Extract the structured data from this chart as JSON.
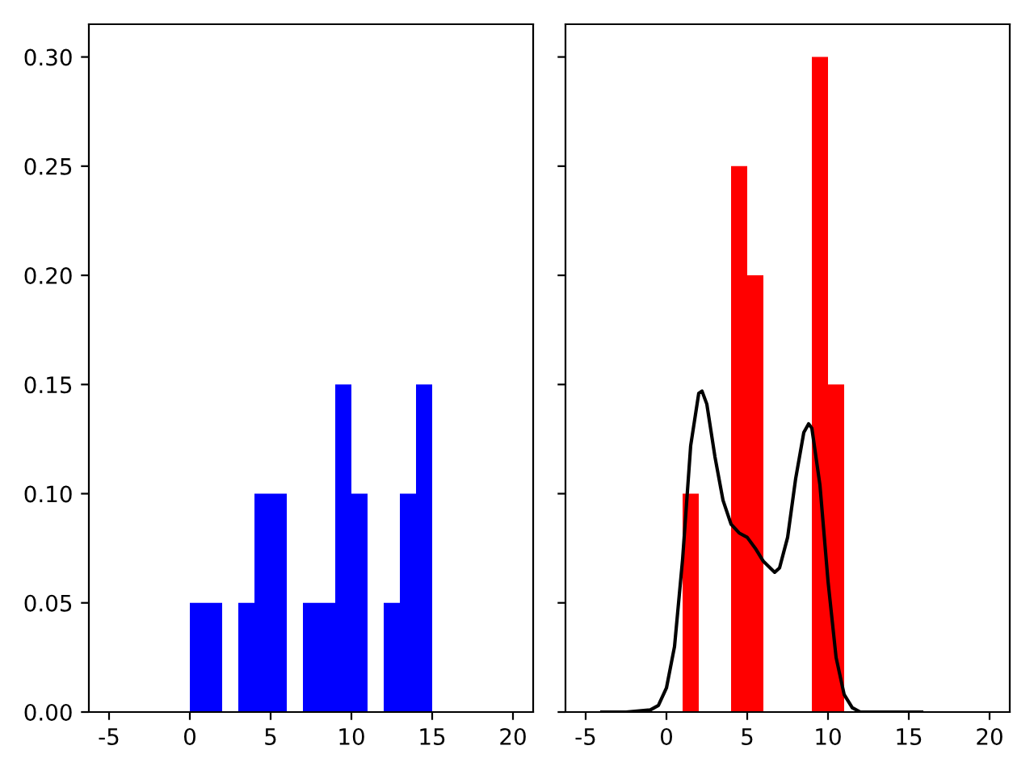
{
  "chart_data": [
    {
      "type": "histogram",
      "bins": [
        0,
        1,
        2,
        3,
        4,
        5,
        6,
        7,
        8,
        9,
        10,
        11,
        12,
        13,
        14,
        15
      ],
      "values": [
        0.05,
        0.05,
        0,
        0.05,
        0.1,
        0.1,
        0,
        0.05,
        0.05,
        0.15,
        0.1,
        0,
        0.05,
        0.1,
        0.15
      ],
      "color": "#0000ff",
      "xlim": [
        -6.25,
        21.25
      ],
      "xticks": [
        -5,
        0,
        5,
        10,
        15,
        20
      ],
      "ylim": [
        0,
        0.315
      ],
      "yticks": [
        {
          "value": 0,
          "label": "0.00"
        },
        {
          "value": 0.05,
          "label": "0.05"
        },
        {
          "value": 0.1,
          "label": "0.10"
        },
        {
          "value": 0.15,
          "label": "0.15"
        },
        {
          "value": 0.2,
          "label": "0.20"
        },
        {
          "value": 0.25,
          "label": "0.25"
        },
        {
          "value": 0.3,
          "label": "0.30"
        }
      ],
      "grid": false
    },
    {
      "type": "histogram",
      "series": [
        {
          "type": "histogram",
          "color": "#ff0000",
          "bins": [
            1,
            2,
            3,
            4,
            5,
            6,
            7,
            8,
            9,
            10,
            11
          ],
          "values": [
            0.1,
            0,
            0,
            0.25,
            0.2,
            0,
            0,
            0,
            0.3,
            0.15
          ]
        },
        {
          "type": "line",
          "color": "#000000",
          "x": [
            -4,
            -2.5,
            -1,
            -0.5,
            0,
            0.5,
            1,
            1.5,
            2,
            2.2,
            2.5,
            3,
            3.5,
            4,
            4.5,
            5,
            5.5,
            6,
            6.7,
            7,
            7.5,
            8,
            8.5,
            8.8,
            9,
            9.5,
            10,
            10.5,
            11,
            11.5,
            12,
            15.8
          ],
          "values": [
            0,
            0,
            0.001,
            0.003,
            0.011,
            0.03,
            0.07,
            0.122,
            0.146,
            0.147,
            0.141,
            0.117,
            0.097,
            0.086,
            0.082,
            0.08,
            0.075,
            0.069,
            0.064,
            0.066,
            0.08,
            0.107,
            0.128,
            0.132,
            0.13,
            0.104,
            0.06,
            0.025,
            0.008,
            0.002,
            0,
            0
          ]
        }
      ],
      "xlim": [
        -6.25,
        21.25
      ],
      "xticks": [
        -5,
        0,
        5,
        10,
        15,
        20
      ],
      "ylim": [
        0,
        0.315
      ],
      "yticks": [
        {
          "value": 0,
          "label": null
        },
        {
          "value": 0.05,
          "label": null
        },
        {
          "value": 0.1,
          "label": null
        },
        {
          "value": 0.15,
          "label": null
        },
        {
          "value": 0.2,
          "label": null
        },
        {
          "value": 0.25,
          "label": null
        },
        {
          "value": 0.3,
          "label": null
        }
      ],
      "tick_labels": "x",
      "grid": false
    }
  ]
}
